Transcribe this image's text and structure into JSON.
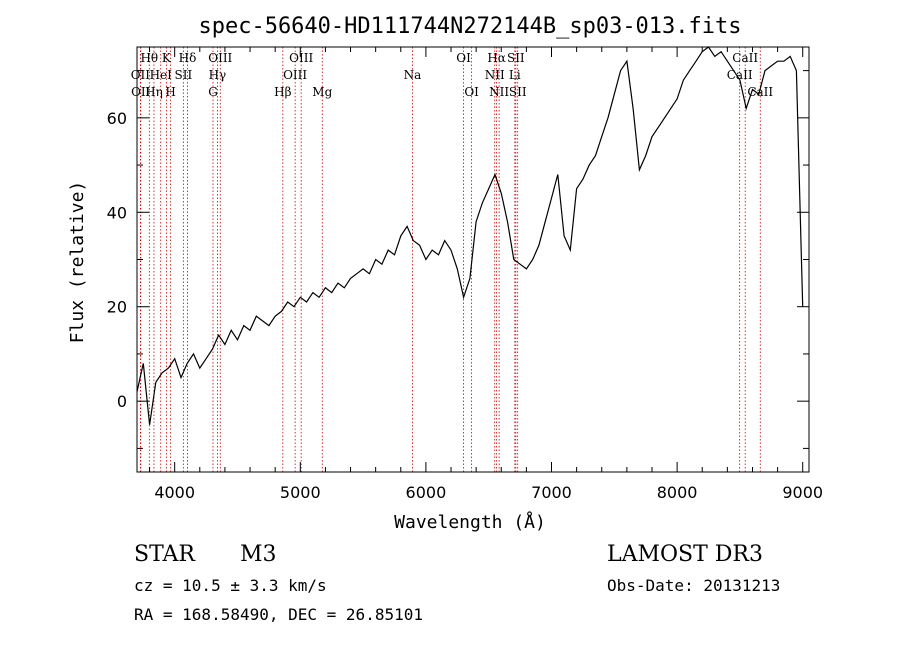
{
  "chart_data": {
    "type": "line",
    "title": "spec-56640-HD111744N272144B_sp03-013.fits",
    "xlabel": "Wavelength (Å)",
    "ylabel": "Flux (relative)",
    "xlim": [
      3700,
      9050
    ],
    "ylim": [
      -15,
      75
    ],
    "x_ticks": [
      4000,
      5000,
      6000,
      7000,
      8000,
      9000
    ],
    "y_ticks": [
      0,
      20,
      40,
      60
    ],
    "x_tick_labels": [
      "4000",
      "5000",
      "6000",
      "7000",
      "8000",
      "9000"
    ],
    "y_tick_labels": [
      "0",
      "20",
      "40",
      "60"
    ],
    "series": [
      {
        "name": "flux",
        "x": [
          3700,
          3750,
          3800,
          3850,
          3900,
          3950,
          4000,
          4050,
          4100,
          4150,
          4200,
          4250,
          4300,
          4350,
          4400,
          4450,
          4500,
          4550,
          4600,
          4650,
          4700,
          4750,
          4800,
          4850,
          4900,
          4950,
          5000,
          5050,
          5100,
          5150,
          5200,
          5250,
          5300,
          5350,
          5400,
          5450,
          5500,
          5550,
          5600,
          5650,
          5700,
          5750,
          5800,
          5850,
          5900,
          5950,
          6000,
          6050,
          6100,
          6150,
          6200,
          6250,
          6300,
          6350,
          6400,
          6450,
          6500,
          6550,
          6600,
          6650,
          6700,
          6750,
          6800,
          6850,
          6900,
          6950,
          7000,
          7050,
          7100,
          7150,
          7200,
          7250,
          7300,
          7350,
          7400,
          7450,
          7500,
          7550,
          7600,
          7650,
          7700,
          7750,
          7800,
          7850,
          7900,
          7950,
          8000,
          8050,
          8100,
          8150,
          8200,
          8250,
          8300,
          8350,
          8400,
          8450,
          8500,
          8550,
          8600,
          8650,
          8700,
          8750,
          8800,
          8850,
          8900,
          8950,
          9000
        ],
        "y": [
          2,
          8,
          -5,
          4,
          6,
          7,
          9,
          5,
          8,
          10,
          7,
          9,
          11,
          14,
          12,
          15,
          13,
          16,
          15,
          18,
          17,
          16,
          18,
          19,
          21,
          20,
          22,
          21,
          23,
          22,
          24,
          23,
          25,
          24,
          26,
          27,
          28,
          27,
          30,
          29,
          32,
          31,
          35,
          37,
          34,
          33,
          30,
          32,
          31,
          34,
          32,
          28,
          22,
          26,
          38,
          42,
          45,
          48,
          44,
          38,
          30,
          29,
          28,
          30,
          33,
          38,
          43,
          48,
          35,
          32,
          45,
          47,
          50,
          52,
          56,
          60,
          65,
          70,
          72,
          62,
          49,
          52,
          56,
          58,
          60,
          62,
          64,
          68,
          70,
          72,
          74,
          75,
          73,
          74,
          72,
          70,
          68,
          62,
          66,
          65,
          70,
          71,
          72,
          72,
          73,
          70,
          20
        ]
      }
    ],
    "lines": [
      {
        "label": "Hθ",
        "wavelength": 3798,
        "row": 1
      },
      {
        "label": "OII",
        "wavelength": 3727,
        "row": 2
      },
      {
        "label": "OII",
        "wavelength": 3730,
        "row": 3
      },
      {
        "label": "HeI",
        "wavelength": 3889,
        "row": 2
      },
      {
        "label": "Hη",
        "wavelength": 3835,
        "row": 3
      },
      {
        "label": "K",
        "wavelength": 3934,
        "row": 1
      },
      {
        "label": "H",
        "wavelength": 3968,
        "row": 3
      },
      {
        "label": "SII",
        "wavelength": 4069,
        "row": 2
      },
      {
        "label": "Hδ",
        "wavelength": 4102,
        "row": 1
      },
      {
        "label": "OIII",
        "wavelength": 4363,
        "row": 1
      },
      {
        "label": "Hγ",
        "wavelength": 4340,
        "row": 2
      },
      {
        "label": "G",
        "wavelength": 4305,
        "row": 3
      },
      {
        "label": "Hβ",
        "wavelength": 4861,
        "row": 3
      },
      {
        "label": "OIII",
        "wavelength": 5007,
        "row": 1
      },
      {
        "label": "OIII",
        "wavelength": 4959,
        "row": 2
      },
      {
        "label": "Mg",
        "wavelength": 5175,
        "row": 3
      },
      {
        "label": "Na",
        "wavelength": 5893,
        "row": 2
      },
      {
        "label": "OI",
        "wavelength": 6300,
        "row": 1
      },
      {
        "label": "OI",
        "wavelength": 6364,
        "row": 3
      },
      {
        "label": "Hα",
        "wavelength": 6563,
        "row": 1
      },
      {
        "label": "SII",
        "wavelength": 6716,
        "row": 1
      },
      {
        "label": "NII",
        "wavelength": 6548,
        "row": 2
      },
      {
        "label": "Li",
        "wavelength": 6708,
        "row": 2
      },
      {
        "label": "NII",
        "wavelength": 6583,
        "row": 3
      },
      {
        "label": "SII",
        "wavelength": 6731,
        "row": 3
      },
      {
        "label": "CaII",
        "wavelength": 8542,
        "row": 1
      },
      {
        "label": "CaII",
        "wavelength": 8498,
        "row": 2
      },
      {
        "label": "CaII",
        "wavelength": 8662,
        "row": 3
      }
    ],
    "line_color": "#000000",
    "marker_color": "#cc0000"
  },
  "info": {
    "class": "STAR",
    "subclass": "M3",
    "cz": "cz = 10.5 ± 3.3 km/s",
    "coords": "RA = 168.58490, DEC =  26.85101",
    "survey": "LAMOST DR3",
    "obs_date": "Obs-Date: 20131213"
  }
}
